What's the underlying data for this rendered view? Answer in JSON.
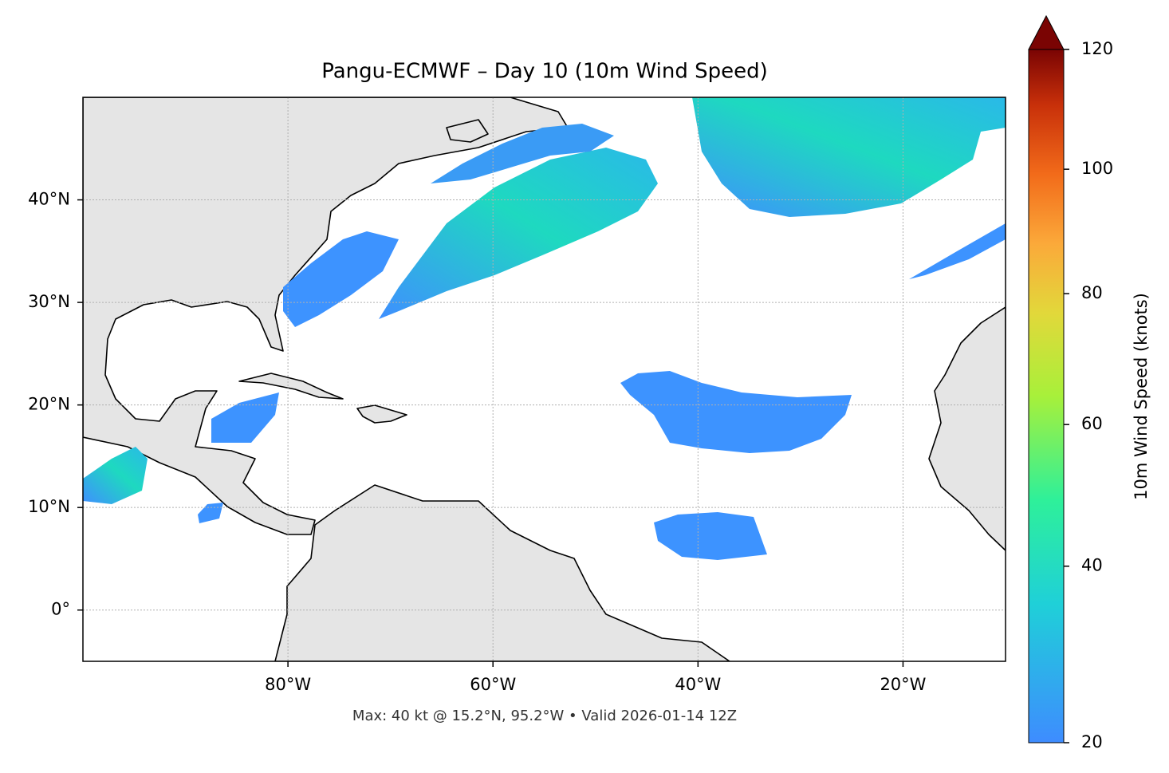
{
  "chart_data": {
    "type": "map",
    "title": "Pangu-ECMWF – Day 10 (10m Wind Speed)",
    "footer": "Max: 40 kt @ 15.2°N, 95.2°W • Valid 2026-01-14 12Z",
    "xlim": [
      -100,
      -10
    ],
    "ylim": [
      -5,
      50
    ],
    "xticks": [
      {
        "value": -80,
        "label": "80°W"
      },
      {
        "value": -60,
        "label": "60°W"
      },
      {
        "value": -40,
        "label": "40°W"
      },
      {
        "value": -20,
        "label": "20°W"
      }
    ],
    "yticks": [
      {
        "value": 0,
        "label": "0°"
      },
      {
        "value": 10,
        "label": "10°N"
      },
      {
        "value": 20,
        "label": "20°N"
      },
      {
        "value": 30,
        "label": "30°N"
      },
      {
        "value": 40,
        "label": "40°N"
      }
    ],
    "grid": true,
    "colorbar": {
      "label": "10m Wind Speed (knots)",
      "lim": [
        20,
        120
      ],
      "ticks": [
        20,
        40,
        60,
        80,
        100,
        120
      ],
      "scale": "power",
      "gamma": 0.85,
      "extend": "max"
    }
  }
}
